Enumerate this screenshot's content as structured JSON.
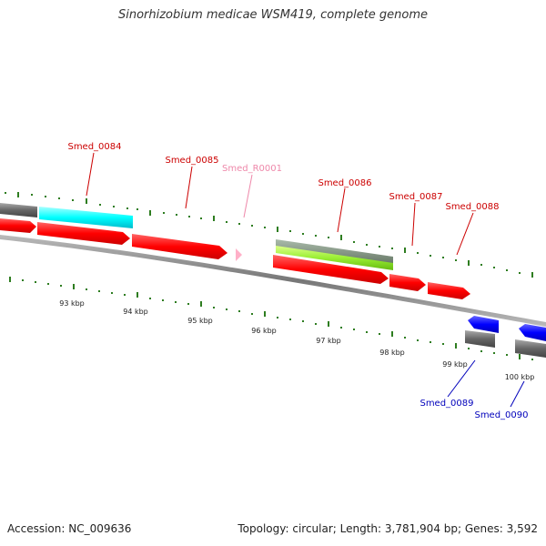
{
  "title": "Sinorhizobium medicae WSM419, complete genome",
  "footer": {
    "accession": "Accession: NC_009636",
    "summary": "Topology: circular; Length: 3,781,904 bp; Genes: 3,592"
  },
  "colors": {
    "backbone": "#888888",
    "tick": "#2e7d20",
    "label_red": "#cc0000",
    "label_pink": "#ee88aa",
    "label_blue": "#0000bb",
    "cds_forward": "#ff0000",
    "cds_reverse": "#0000ff",
    "gene_gray": "#666666",
    "rrna": "#00ffff",
    "ncrna": "#ffb0c8",
    "misc_green": "#99ee33",
    "misc_gray": "#889988"
  },
  "scale_labels": [
    "93 kbp",
    "94 kbp",
    "95 kbp",
    "96 kbp",
    "97 kbp",
    "98 kbp",
    "99 kbp",
    "100 kbp"
  ],
  "gene_labels": {
    "smed_0084": "Smed_0084",
    "smed_0085": "Smed_0085",
    "smed_r0001": "Smed_R0001",
    "smed_0086": "Smed_0086",
    "smed_0087": "Smed_0087",
    "smed_0088": "Smed_0088",
    "smed_0089": "Smed_0089",
    "smed_0090": "Smed_0090"
  }
}
